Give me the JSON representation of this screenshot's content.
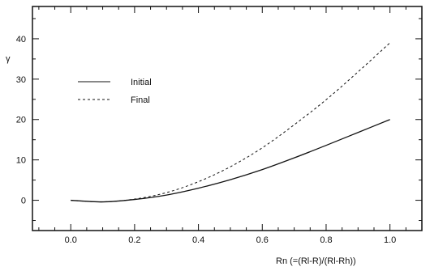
{
  "chart_data": {
    "type": "line",
    "title": "",
    "xlabel": "Rn (=(Rl-R)/(Rl-Rh))",
    "ylabel": "γ",
    "xlim": [
      -0.12,
      1.1
    ],
    "ylim": [
      -7.5,
      48
    ],
    "x_ticks": [
      0.0,
      0.2,
      0.4,
      0.6,
      0.8,
      1.0
    ],
    "x_tick_labels": [
      "0.0",
      "0.2",
      "0.4",
      "0.6",
      "0.8",
      "1.0"
    ],
    "y_ticks": [
      0,
      10,
      20,
      30,
      40
    ],
    "y_tick_labels": [
      "0",
      "10",
      "20",
      "30",
      "40"
    ],
    "grid": false,
    "legend_position": "upper-left",
    "series": [
      {
        "name": "Initial",
        "style": "solid",
        "color": "#111111",
        "x": [
          0.0,
          0.1,
          0.2,
          0.3,
          0.4,
          0.5,
          0.6,
          0.7,
          0.8,
          0.9,
          1.0
        ],
        "y": [
          0.0,
          -0.4,
          0.2,
          1.3,
          3.0,
          5.1,
          7.6,
          10.5,
          13.6,
          16.8,
          20.0
        ]
      },
      {
        "name": "Final",
        "style": "dashed",
        "color": "#111111",
        "x": [
          0.0,
          0.1,
          0.2,
          0.3,
          0.4,
          0.5,
          0.6,
          0.7,
          0.8,
          0.9,
          1.0
        ],
        "y": [
          0.0,
          -0.4,
          0.3,
          1.9,
          4.6,
          8.3,
          13.0,
          18.7,
          24.9,
          31.8,
          39.0
        ]
      }
    ]
  }
}
